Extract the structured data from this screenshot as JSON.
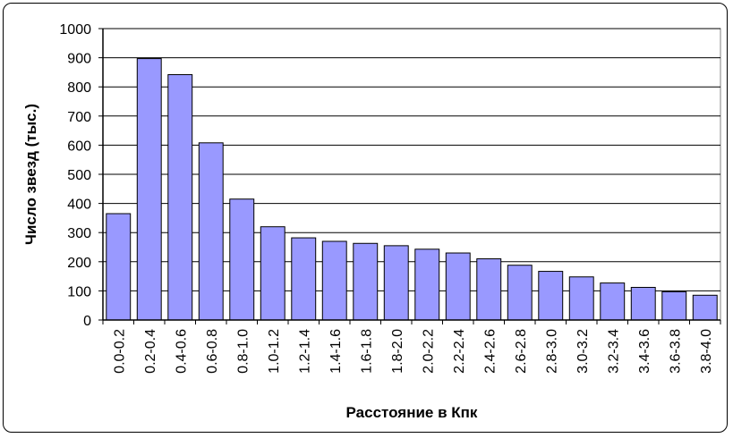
{
  "chart_data": {
    "type": "bar",
    "categories": [
      "0.0-0.2",
      "0.2-0.4",
      "0.4-0.6",
      "0.6-0.8",
      "0.8-1.0",
      "1.0-1.2",
      "1.2-1.4",
      "1.4-1.6",
      "1.6-1.8",
      "1.8-2.0",
      "2.0-2.2",
      "2.2-2.4",
      "2.4-2.6",
      "2.6-2.8",
      "2.8-3.0",
      "3.0-3.2",
      "3.2-3.4",
      "3.4-3.6",
      "3.6-3.8",
      "3.8-4.0"
    ],
    "values": [
      365,
      897,
      842,
      608,
      415,
      320,
      282,
      270,
      263,
      255,
      243,
      230,
      210,
      188,
      167,
      148,
      127,
      112,
      97,
      85
    ],
    "xlabel": "Расстояние в Кпк",
    "ylabel": "Число звезд (тыс.)",
    "ylim": [
      0,
      1000
    ],
    "yticks": [
      0,
      100,
      200,
      300,
      400,
      500,
      600,
      700,
      800,
      900,
      1000
    ],
    "grid": true,
    "legend": "none",
    "bar_color": "#9999ff",
    "bar_edge_color": "#000000"
  }
}
